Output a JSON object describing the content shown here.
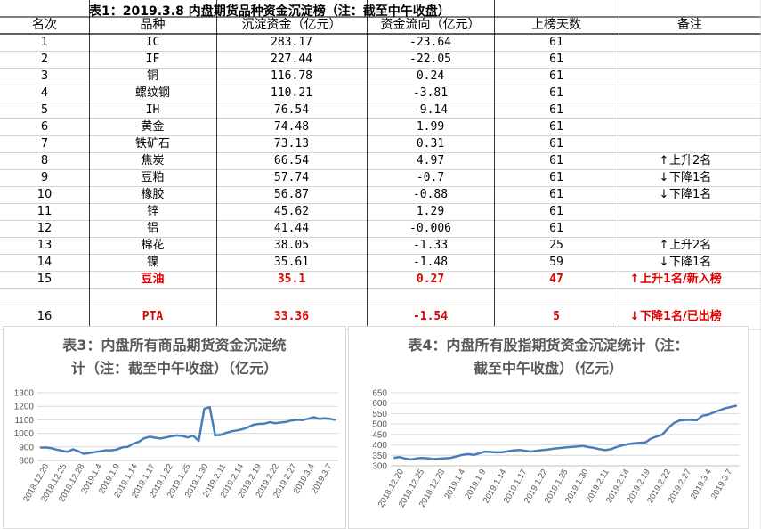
{
  "table": {
    "title": "表1：2019.3.8 内盘期货品种资金沉淀榜（注：截至中午收盘）",
    "headers": [
      "名次",
      "品种",
      "沉淀资金（亿元）",
      "资金流向（亿元）",
      "上榜天数",
      "备注"
    ],
    "rows": [
      {
        "rank": "1",
        "name": "IC",
        "fund": "283.17",
        "flow": "-23.64",
        "days": "61",
        "note": "",
        "dir": ""
      },
      {
        "rank": "2",
        "name": "IF",
        "fund": "227.44",
        "flow": "-22.05",
        "days": "61",
        "note": "",
        "dir": ""
      },
      {
        "rank": "3",
        "name": "铜",
        "fund": "116.78",
        "flow": "0.24",
        "days": "61",
        "note": "",
        "dir": ""
      },
      {
        "rank": "4",
        "name": "螺纹钢",
        "fund": "110.21",
        "flow": "-3.81",
        "days": "61",
        "note": "",
        "dir": ""
      },
      {
        "rank": "5",
        "name": "IH",
        "fund": "76.54",
        "flow": "-9.14",
        "days": "61",
        "note": "",
        "dir": ""
      },
      {
        "rank": "6",
        "name": "黄金",
        "fund": "74.48",
        "flow": "1.99",
        "days": "61",
        "note": "",
        "dir": ""
      },
      {
        "rank": "7",
        "name": "铁矿石",
        "fund": "73.13",
        "flow": "0.31",
        "days": "61",
        "note": "",
        "dir": ""
      },
      {
        "rank": "8",
        "name": "焦炭",
        "fund": "66.54",
        "flow": "4.97",
        "days": "61",
        "note": "上升2名",
        "dir": "up"
      },
      {
        "rank": "9",
        "name": "豆粕",
        "fund": "57.74",
        "flow": "-0.7",
        "days": "61",
        "note": "下降1名",
        "dir": "down"
      },
      {
        "rank": "10",
        "name": "橡胶",
        "fund": "56.87",
        "flow": "-0.88",
        "days": "61",
        "note": "下降1名",
        "dir": "down"
      },
      {
        "rank": "11",
        "name": "锌",
        "fund": "45.62",
        "flow": "1.29",
        "days": "61",
        "note": "",
        "dir": ""
      },
      {
        "rank": "12",
        "name": "铝",
        "fund": "41.44",
        "flow": "-0.006",
        "days": "61",
        "note": "",
        "dir": ""
      },
      {
        "rank": "13",
        "name": "棉花",
        "fund": "38.05",
        "flow": "-1.33",
        "days": "25",
        "note": "上升2名",
        "dir": "up"
      },
      {
        "rank": "14",
        "name": "镍",
        "fund": "35.61",
        "flow": "-1.48",
        "days": "59",
        "note": "下降1名",
        "dir": "down"
      },
      {
        "rank": "15",
        "name": "豆油",
        "fund": "35.1",
        "flow": "0.27",
        "days": "47",
        "note": "上升1名/新入榜",
        "dir": "up",
        "red": true
      },
      {
        "rank": "",
        "name": "",
        "fund": "",
        "flow": "",
        "days": "",
        "note": "",
        "dir": ""
      },
      {
        "rank": "16",
        "name": "PTA",
        "fund": "33.36",
        "flow": "-1.54",
        "days": "5",
        "note": "下降1名/已出榜",
        "dir": "down",
        "red": true
      }
    ],
    "arrows": {
      "up": "↑",
      "down": "↓"
    },
    "red_color": "#e00000"
  },
  "chart_data": [
    {
      "type": "line",
      "title": "表3：内盘所有商品期货资金沉淀统计（注：截至中午收盘）（亿元）",
      "title_lines": [
        "表3：内盘所有商品期货资金沉淀统",
        "计（注：截至中午收盘）（亿元）"
      ],
      "ylim": [
        800,
        1300
      ],
      "yticks": [
        800,
        900,
        1000,
        1100,
        1200,
        1300
      ],
      "xtick_labels": [
        "2018.12.20",
        "2018.12.25",
        "2018.12.28",
        "2019.1.4",
        "2019.1.9",
        "2019.1.14",
        "2019.1.17",
        "2019.1.22",
        "2019.1.25",
        "2019.1.30",
        "2019.2.11",
        "2019.2.14",
        "2019.2.19",
        "2019.2.22",
        "2019.2.27",
        "2019.3.4",
        "2019.3.7"
      ],
      "color": "#4a7ebb",
      "values": [
        895,
        896,
        891,
        880,
        872,
        863,
        882,
        868,
        849,
        855,
        862,
        868,
        875,
        875,
        880,
        897,
        900,
        923,
        937,
        963,
        975,
        968,
        962,
        970,
        978,
        985,
        980,
        970,
        982,
        945,
        1180,
        1195,
        985,
        988,
        1003,
        1015,
        1022,
        1030,
        1045,
        1063,
        1070,
        1072,
        1082,
        1075,
        1080,
        1085,
        1095,
        1100,
        1098,
        1108,
        1120,
        1108,
        1112,
        1108,
        1098
      ]
    },
    {
      "type": "line",
      "title": "表4：内盘所有股指期货资金沉淀统计（注：截至中午收盘）（亿元）",
      "title_lines": [
        "表4：内盘所有股指期货资金沉淀统计（注：",
        "截至中午收盘）（亿元）"
      ],
      "ylim": [
        300,
        650
      ],
      "yticks": [
        300,
        350,
        400,
        450,
        500,
        550,
        600,
        650
      ],
      "xtick_labels": [
        "2018.12.20",
        "2018.12.25",
        "2018.12.28",
        "2019.1.4",
        "2019.1.9",
        "2019.1.14",
        "2019.1.17",
        "2019.1.22",
        "2019.1.25",
        "2019.1.30",
        "2019.2.11",
        "2019.2.14",
        "2019.2.19",
        "2019.2.22",
        "2019.2.27",
        "2019.3.4",
        "2019.3.7"
      ],
      "color": "#4a7ebb",
      "values": [
        338,
        342,
        335,
        330,
        335,
        338,
        336,
        332,
        334,
        336,
        338,
        345,
        352,
        356,
        352,
        360,
        368,
        366,
        364,
        365,
        370,
        374,
        376,
        372,
        368,
        372,
        375,
        378,
        382,
        385,
        388,
        390,
        392,
        395,
        390,
        386,
        380,
        375,
        380,
        390,
        398,
        404,
        408,
        410,
        412,
        430,
        440,
        450,
        480,
        505,
        517,
        520,
        520,
        518,
        540,
        545,
        556,
        566,
        576,
        582,
        589
      ]
    }
  ]
}
